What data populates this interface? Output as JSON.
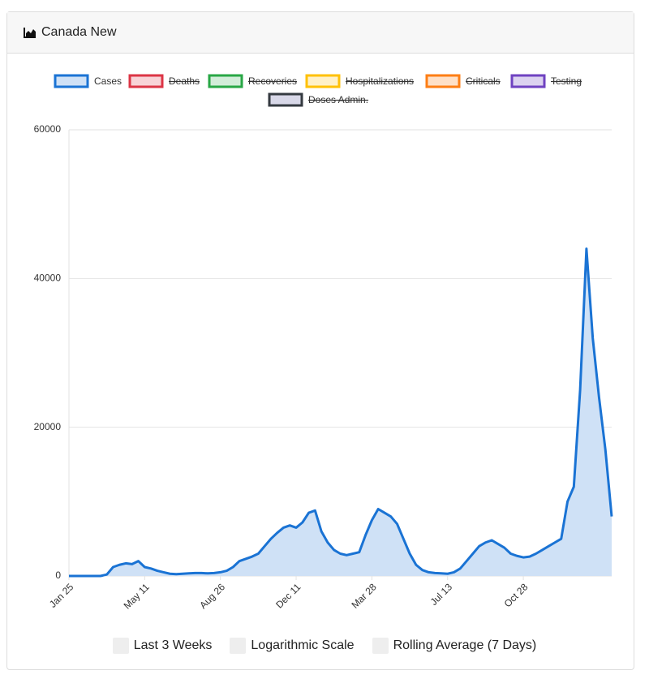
{
  "header": {
    "title": "Canada New"
  },
  "chart_data": {
    "type": "line",
    "categories": [
      "Jan 25",
      null,
      null,
      null,
      null,
      null,
      null,
      null,
      null,
      null,
      null,
      null,
      "May 11",
      null,
      null,
      null,
      null,
      null,
      null,
      null,
      null,
      null,
      null,
      null,
      "Aug 26",
      null,
      null,
      null,
      null,
      null,
      null,
      null,
      null,
      null,
      null,
      null,
      "Dec 11",
      null,
      null,
      null,
      null,
      null,
      null,
      null,
      null,
      null,
      null,
      null,
      "Mar 28",
      null,
      null,
      null,
      null,
      null,
      null,
      null,
      null,
      null,
      null,
      null,
      "Jul 13",
      null,
      null,
      null,
      null,
      null,
      null,
      null,
      null,
      null,
      null,
      null,
      "Oct 28",
      null,
      null,
      null,
      null,
      null,
      null,
      null,
      null,
      null,
      null,
      null,
      null,
      null,
      null
    ],
    "series": [
      {
        "name": "Cases",
        "color": "#1a73d4",
        "fill": "#cfe1f6",
        "hidden": false,
        "values": [
          0,
          0,
          0,
          0,
          0,
          0,
          200,
          1200,
          1500,
          1700,
          1600,
          2000,
          1200,
          1000,
          700,
          500,
          300,
          250,
          300,
          350,
          400,
          400,
          350,
          400,
          500,
          700,
          1200,
          2000,
          2300,
          2600,
          3000,
          4000,
          5000,
          5800,
          6500,
          6800,
          6500,
          7200,
          8500,
          8800,
          6000,
          4500,
          3500,
          3000,
          2800,
          3000,
          3200,
          5500,
          7500,
          9000,
          8500,
          8000,
          7000,
          5000,
          3000,
          1500,
          800,
          500,
          400,
          350,
          300,
          500,
          1000,
          2000,
          3000,
          4000,
          4500,
          4800,
          4300,
          3800,
          3000,
          2700,
          2500,
          2600,
          3000,
          3500,
          4000,
          4500,
          5000,
          10000,
          12000,
          25000,
          44000,
          32000,
          24000,
          17000,
          8000
        ]
      },
      {
        "name": "Deaths",
        "color": "#dc3545",
        "fill": "#f8d3d7",
        "hidden": true
      },
      {
        "name": "Recoveries",
        "color": "#28a745",
        "fill": "#d2edd9",
        "hidden": true
      },
      {
        "name": "Hospitalizations",
        "color": "#ffc107",
        "fill": "#fff1c8",
        "hidden": true
      },
      {
        "name": "Criticals",
        "color": "#fd7e14",
        "fill": "#fee0c7",
        "hidden": true
      },
      {
        "name": "Testing",
        "color": "#6f42c1",
        "fill": "#dcd2f0",
        "hidden": true
      },
      {
        "name": "Doses Admin.",
        "color": "#343a40",
        "fill": "#d8d8e8",
        "hidden": true
      }
    ],
    "ylim": [
      0,
      60000
    ],
    "yticks": [
      0,
      20000,
      40000,
      60000
    ],
    "grid": true
  },
  "controls": [
    "Last 3 Weeks",
    "Logarithmic Scale",
    "Rolling Average (7 Days)"
  ]
}
